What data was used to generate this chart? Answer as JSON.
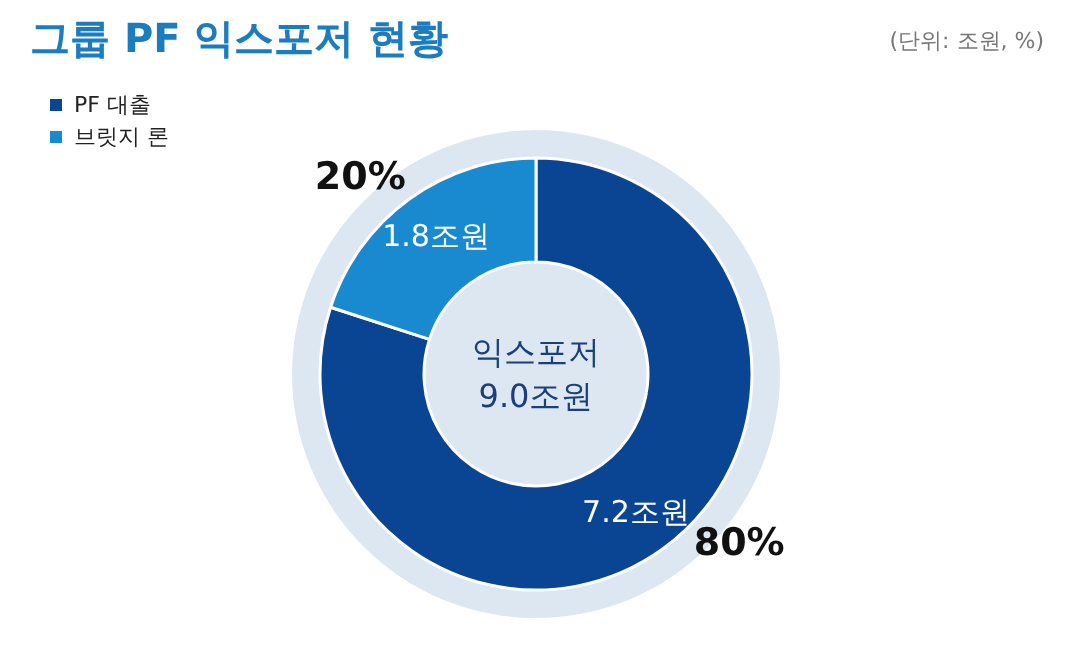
{
  "chart_data": {
    "type": "donut",
    "title": "그룹 PF 익스포저 현황",
    "subtitle": "(단위: 조원, %)",
    "categories": [
      "PF 대출",
      "브릿지 론"
    ],
    "values": [
      7.2,
      1.8
    ],
    "colors": [
      "#0a4593",
      "#1a8ad0"
    ],
    "value_labels": [
      "7.2조원",
      "1.8조원"
    ],
    "annotations": [
      "80%",
      "20%",
      "익스포저",
      "9.0조원"
    ],
    "legend": "top left"
  }
}
